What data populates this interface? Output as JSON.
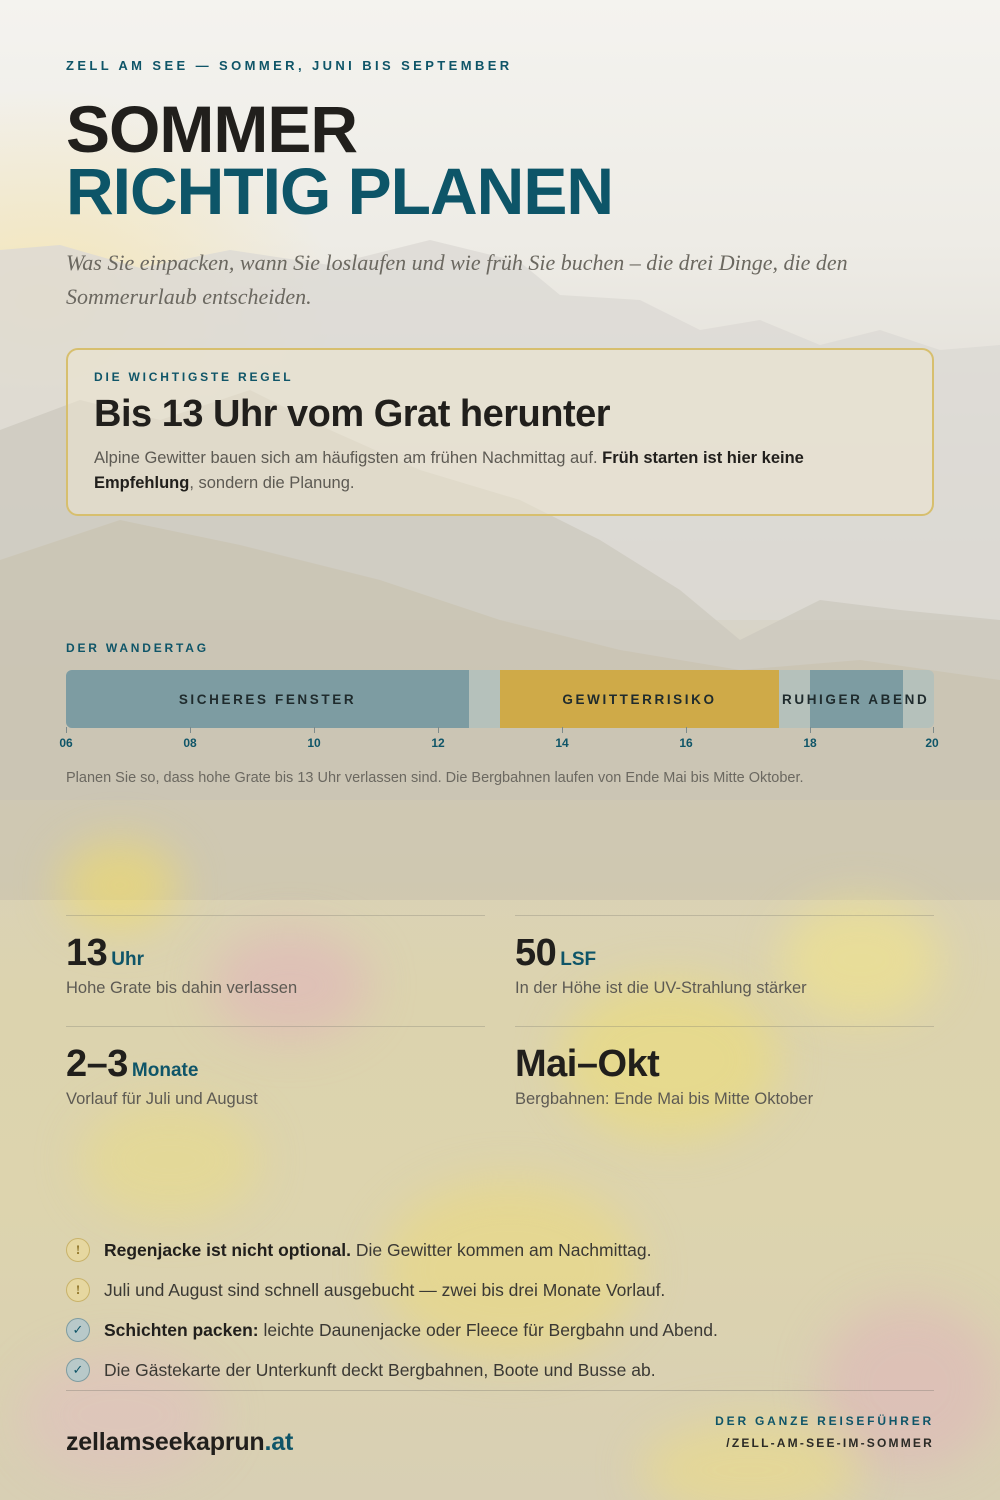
{
  "header": {
    "kicker": "ZELL AM SEE — SOMMER, JUNI BIS SEPTEMBER",
    "title_line1": "SOMMER",
    "title_line2": "RICHTIG PLANEN",
    "lede": "Was Sie einpacken, wann Sie loslaufen und wie früh Sie buchen – die drei Dinge, die den Sommerurlaub entscheiden."
  },
  "rule_box": {
    "kicker": "DIE WICHTIGSTE REGEL",
    "title": "Bis 13 Uhr vom Grat herunter",
    "text_plain": "Alpine Gewitter bauen sich am häufigsten am frühen Nachmittag auf. ",
    "text_strong": "Früh starten ist hier keine Empfehlung",
    "text_end": ", sondern die Planung."
  },
  "timeline": {
    "label": "DER WANDERTAG",
    "segments": {
      "safe": "SICHERES FENSTER",
      "storm": "GEWITTERRISIKO",
      "evening": "RUHIGER ABEND"
    },
    "ticks": [
      "06",
      "08",
      "10",
      "12",
      "14",
      "16",
      "18",
      "20"
    ],
    "note": "Planen Sie so, dass hohe Grate bis 13 Uhr verlassen sind. Die Bergbahnen laufen von Ende Mai bis Mitte Oktober."
  },
  "stats": [
    {
      "value": "13",
      "unit": "Uhr",
      "desc": "Hohe Grate bis dahin verlassen"
    },
    {
      "value": "50",
      "unit": "LSF",
      "desc": "In der Höhe ist die UV-Strahlung stärker"
    },
    {
      "value": "2–3",
      "unit": "Monate",
      "desc": "Vorlauf für Juli und August"
    },
    {
      "value": "Mai–Okt",
      "unit": "",
      "desc": "Bergbahnen: Ende Mai bis Mitte Oktober"
    }
  ],
  "checklist": [
    {
      "icon": "warning-icon",
      "glyph": "!",
      "strong": "Regenjacke ist nicht optional.",
      "text": " Die Gewitter kommen am Nachmittag."
    },
    {
      "icon": "warning-icon",
      "glyph": "!",
      "strong": "",
      "text": "Juli und August sind schnell ausgebucht — zwei bis drei Monate Vorlauf."
    },
    {
      "icon": "check-icon",
      "glyph": "✓",
      "strong": "Schichten packen:",
      "text": " leichte Daunenjacke oder Fleece für Bergbahn und Abend."
    },
    {
      "icon": "check-icon",
      "glyph": "✓",
      "strong": "",
      "text": "Die Gästekarte der Unterkunft deckt Bergbahnen, Boote und Busse ab."
    }
  ],
  "footer": {
    "site_name": "zellamseekaprun",
    "site_tld": ".at",
    "guide_kicker": "DER GANZE REISEFÜHRER",
    "guide_path": "/ZELL-AM-SEE-IM-SOMMER"
  },
  "colors": {
    "accent_teal": "#0d5568",
    "storm_gold": "#cfaa48",
    "safe_slate": "#7d9ca2",
    "ink": "#211f1c"
  }
}
